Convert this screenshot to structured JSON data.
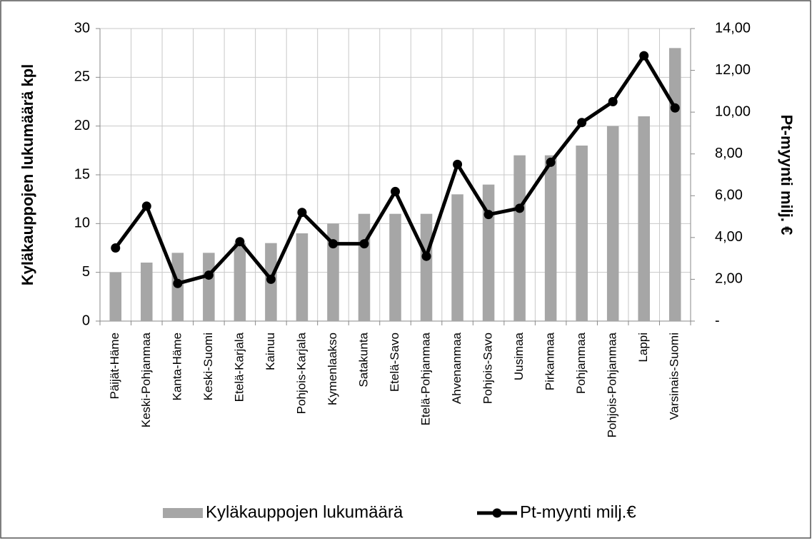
{
  "chart_data": {
    "type": "combo",
    "y_label": "Kyläkauppojen lukumäärä kpl",
    "y2_label": "Pt-myynti milj. €",
    "categories": [
      "Päijät-Häme",
      "Keski-Pohjanmaa",
      "Kanta-Häme",
      "Keski-Suomi",
      "Etelä-Karjala",
      "Kainuu",
      "Pohjois-Karjala",
      "Kymenlaakso",
      "Satakunta",
      "Etelä-Savo",
      "Etelä-Pohjanmaa",
      "Ahvenanmaa",
      "Pohjois-Savo",
      "Uusimaa",
      "Pirkanmaa",
      "Pohjanmaa",
      "Pohjois-Pohjanmaa",
      "Lappi",
      "Varsinais-Suomi"
    ],
    "series": [
      {
        "name": "Kyläkauppojen lukumäärä",
        "type": "bar",
        "color": "#a6a6a6",
        "values": [
          5,
          6,
          7,
          7,
          8,
          8,
          9,
          10,
          11,
          11,
          11,
          13,
          14,
          17,
          17,
          18,
          20,
          21,
          28
        ]
      },
      {
        "name": "Pt-myynti milj.€",
        "type": "line",
        "axis": "y2",
        "color": "#000000",
        "values": [
          3.5,
          5.5,
          1.8,
          2.2,
          3.8,
          2.0,
          5.2,
          3.7,
          3.7,
          6.2,
          3.1,
          7.5,
          5.1,
          5.4,
          7.6,
          9.5,
          10.5,
          12.7,
          10.2
        ]
      }
    ],
    "ylim": [
      0,
      30
    ],
    "yticks": [
      0,
      5,
      10,
      15,
      20,
      25,
      30
    ],
    "y2lim": [
      0,
      14
    ],
    "y2ticks": [
      {
        "value": 0,
        "label": "-"
      },
      {
        "value": 2,
        "label": "2,00"
      },
      {
        "value": 4,
        "label": "4,00"
      },
      {
        "value": 6,
        "label": "6,00"
      },
      {
        "value": 8,
        "label": "8,00"
      },
      {
        "value": 10,
        "label": "10,00"
      },
      {
        "value": 12,
        "label": "12,00"
      },
      {
        "value": 14,
        "label": "14,00"
      }
    ],
    "grid": true,
    "legend": "bottom"
  }
}
